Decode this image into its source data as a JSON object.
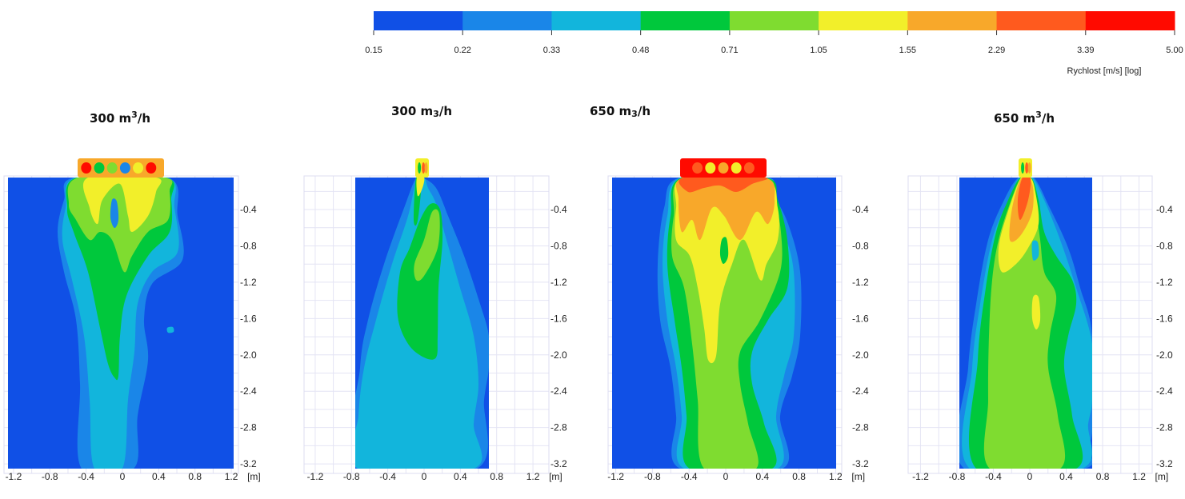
{
  "colorbar": {
    "label": "Rychlost [m/s] [log]",
    "ticks": [
      "0.15",
      "0.22",
      "0.33",
      "0.48",
      "0.71",
      "1.05",
      "1.55",
      "2.29",
      "3.39",
      "5.00"
    ],
    "colors": [
      "#1050e6",
      "#1a86e8",
      "#12b5dc",
      "#00c83c",
      "#7fdc30",
      "#f2ef2a",
      "#f8a82a",
      "#ff5a1e",
      "#ff0a00"
    ]
  },
  "chart_data": [
    {
      "type": "heatmap",
      "title_value": "300",
      "title_unit": "m",
      "title_exp": "3",
      "title_exp_style": "sup",
      "title_rest": "/h",
      "x_ticks": [
        "-1.2",
        "-0.8",
        "-0.4",
        "0",
        "0.4",
        "0.8",
        "1.2"
      ],
      "x_unit": "[m]",
      "y_ticks": [
        "-0.4",
        "-0.8",
        "-1.2",
        "-1.6",
        "-2.0",
        "-2.4",
        "-2.8",
        "-3.2"
      ],
      "xlim": [
        -1.2,
        1.2
      ],
      "ylim": [
        -3.2,
        0
      ]
    },
    {
      "type": "heatmap",
      "title_value": "300",
      "title_unit": "m",
      "title_exp": "3",
      "title_exp_style": "sub",
      "title_rest": "/h",
      "x_ticks": [
        "-1.2",
        "-0.8",
        "-0.4",
        "0",
        "0.4",
        "0.8",
        "1.2"
      ],
      "x_unit": "[m]",
      "y_ticks": [
        "-0.4",
        "-0.8",
        "-1.2",
        "-1.6",
        "-2.0",
        "-2.4",
        "-2.8",
        "-3.2"
      ],
      "xlim": [
        -0.76,
        0.72
      ],
      "ylim": [
        -3.2,
        0
      ]
    },
    {
      "type": "heatmap",
      "title_value": "650",
      "title_unit": "m",
      "title_exp": "3",
      "title_exp_style": "sub",
      "title_rest": "/h",
      "x_ticks": [
        "-1.2",
        "-0.8",
        "-0.4",
        "0",
        "0.4",
        "0.8",
        "1.2"
      ],
      "x_unit": "[m]",
      "y_ticks": [
        "-0.4",
        "-0.8",
        "-1.2",
        "-1.6",
        "-2.0",
        "-2.4",
        "-2.8",
        "-3.2"
      ],
      "xlim": [
        -1.2,
        1.2
      ],
      "ylim": [
        -3.2,
        0
      ]
    },
    {
      "type": "heatmap",
      "title_value": "650",
      "title_unit": "m",
      "title_exp": "3",
      "title_exp_style": "sup",
      "title_rest": "/h",
      "x_ticks": [
        "-1.2",
        "-0.8",
        "-0.4",
        "0",
        "0.4",
        "0.8",
        "1.2"
      ],
      "x_unit": "[m]",
      "y_ticks": [
        "-0.4",
        "-0.8",
        "-1.2",
        "-1.6",
        "-2.0",
        "-2.4",
        "-2.8",
        "-3.2"
      ],
      "xlim": [
        -0.76,
        0.72
      ],
      "ylim": [
        -3.2,
        0
      ]
    }
  ]
}
